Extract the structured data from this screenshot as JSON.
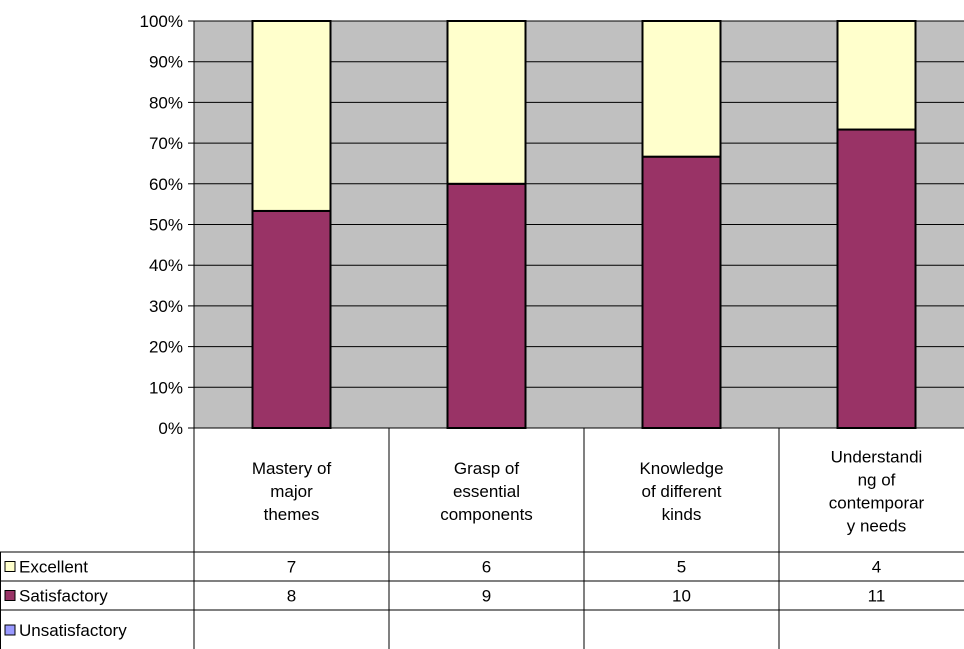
{
  "chart_data": {
    "type": "bar",
    "stacked": "percent",
    "categories": [
      [
        "Mastery of",
        "major",
        "themes"
      ],
      [
        "Grasp of",
        "essential",
        "components"
      ],
      [
        "Knowledge",
        "of different",
        "kinds"
      ],
      [
        "Understandi",
        "ng of",
        "contemporar",
        "y needs"
      ]
    ],
    "series": [
      {
        "name": "Excellent",
        "values": [
          7,
          6,
          5,
          4
        ],
        "color": "#ffffcc"
      },
      {
        "name": "Satisfactory",
        "values": [
          8,
          9,
          10,
          11
        ],
        "color": "#993366"
      },
      {
        "name": "Unsatisfactory",
        "values": [
          null,
          null,
          null,
          null
        ],
        "color": "#9999ff"
      }
    ],
    "stack_order_bottom_to_top": [
      "Unsatisfactory",
      "Satisfactory",
      "Excellent"
    ],
    "ylim": [
      0,
      100
    ],
    "yticks": [
      "0%",
      "10%",
      "20%",
      "30%",
      "40%",
      "50%",
      "60%",
      "70%",
      "80%",
      "90%",
      "100%"
    ],
    "plot_background": "#c0c0c0",
    "grid": true,
    "legend": "data-table-left",
    "data_table": true
  }
}
